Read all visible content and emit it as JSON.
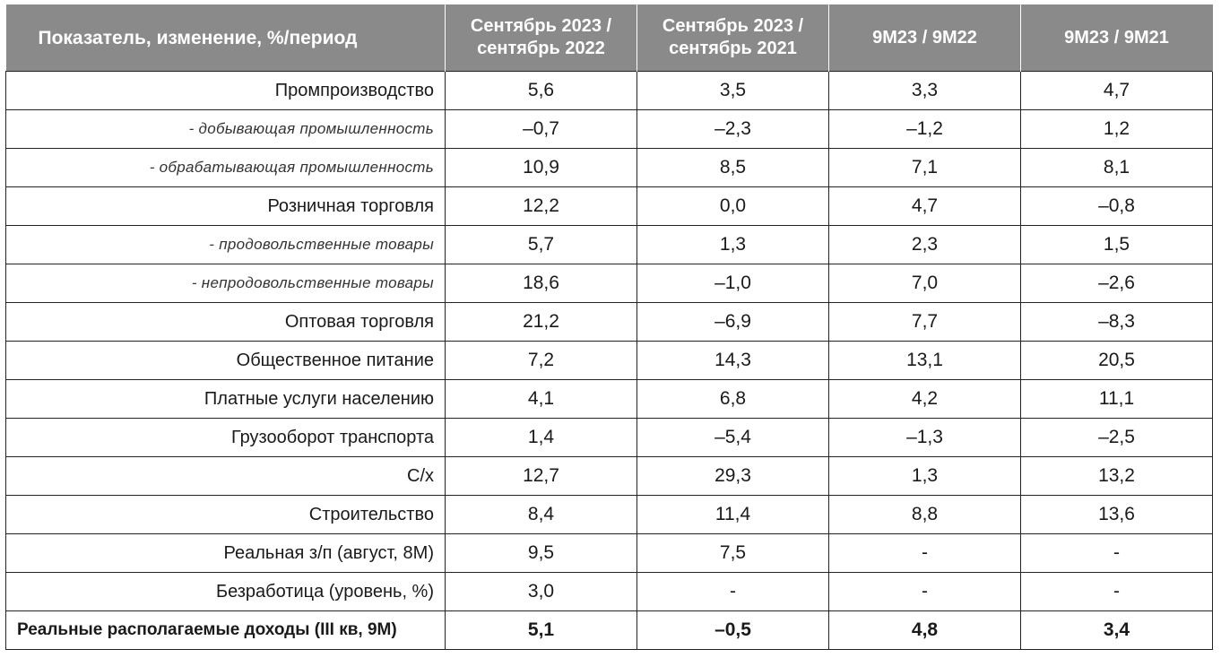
{
  "table": {
    "headers": [
      "Показатель, изменение, %/период",
      "Сентябрь 2023 / сентябрь 2022",
      "Сентябрь 2023 / сентябрь 2021",
      "9М23 / 9М22",
      "9М23 / 9М21"
    ],
    "rows": [
      {
        "label": "Промпроизводство",
        "v": [
          "5,6",
          "3,5",
          "3,3",
          "4,7"
        ]
      },
      {
        "label": "- добывающая промышленность",
        "v": [
          "–0,7",
          "–2,3",
          "–1,2",
          "1,2"
        ]
      },
      {
        "label": "- обрабатывающая промышленность",
        "v": [
          "10,9",
          "8,5",
          "7,1",
          "8,1"
        ]
      },
      {
        "label": "Розничная торговля",
        "v": [
          "12,2",
          "0,0",
          "4,7",
          "–0,8"
        ]
      },
      {
        "label": "- продовольственные товары",
        "v": [
          "5,7",
          "1,3",
          "2,3",
          "1,5"
        ]
      },
      {
        "label": "- непродовольственные товары",
        "v": [
          "18,6",
          "–1,0",
          "7,0",
          "–2,6"
        ]
      },
      {
        "label": "Оптовая торговля",
        "v": [
          "21,2",
          "–6,9",
          "7,7",
          "–8,3"
        ]
      },
      {
        "label": "Общественное питание",
        "v": [
          "7,2",
          "14,3",
          "13,1",
          "20,5"
        ]
      },
      {
        "label": "Платные услуги населению",
        "v": [
          "4,1",
          "6,8",
          "4,2",
          "11,1"
        ]
      },
      {
        "label": "Грузооборот транспорта",
        "v": [
          "1,4",
          "–5,4",
          "–1,3",
          "–2,5"
        ]
      },
      {
        "label": "С/х",
        "v": [
          "12,7",
          "29,3",
          "1,3",
          "13,2"
        ]
      },
      {
        "label": "Строительство",
        "v": [
          "8,4",
          "11,4",
          "8,8",
          "13,6"
        ]
      },
      {
        "label": "Реальная з/п (август, 8М)",
        "v": [
          "9,5",
          "7,5",
          "-",
          "-"
        ]
      },
      {
        "label": "Безработица (уровень, %)",
        "v": [
          "3,0",
          "-",
          "-",
          "-"
        ]
      },
      {
        "label": "Реальные располагаемые доходы (III кв, 9М)",
        "v": [
          "5,1",
          "–0,5",
          "4,8",
          "3,4"
        ]
      }
    ]
  }
}
